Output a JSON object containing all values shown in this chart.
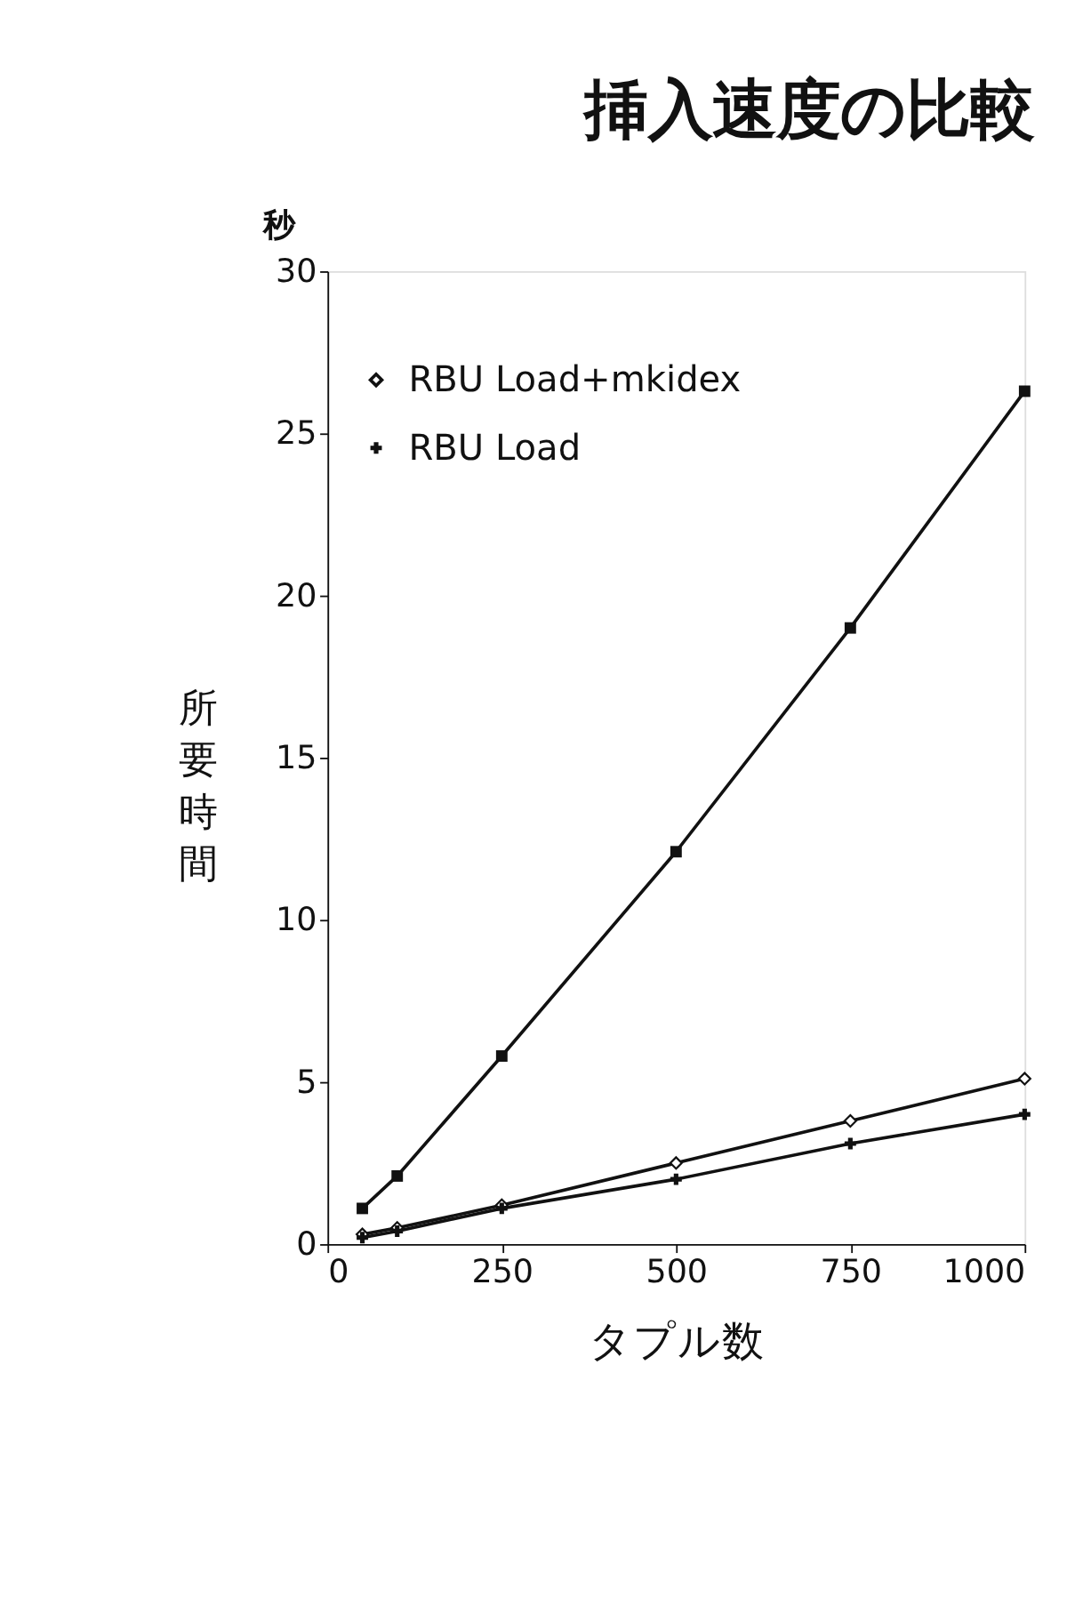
{
  "chart_data": {
    "type": "line",
    "title": "挿入速度の比較",
    "xlabel": "タプル数",
    "ylabel": "所要時間",
    "annotations": [
      "秒"
    ],
    "x": [
      50,
      100,
      250,
      500,
      750,
      1000
    ],
    "series": [
      {
        "color": "#111111",
        "marker": "square",
        "values": [
          1.1,
          2.1,
          5.8,
          12.1,
          19.0,
          26.3
        ]
      },
      {
        "name": "RBU Load+mkidex",
        "color": "#111111",
        "marker": "diamond",
        "values": [
          0.3,
          0.5,
          1.2,
          2.5,
          3.8,
          5.1
        ]
      },
      {
        "name": "RBU Load",
        "color": "#111111",
        "marker": "cross",
        "values": [
          0.2,
          0.4,
          1.1,
          2.0,
          3.1,
          4.0
        ]
      }
    ],
    "xlim": [
      0,
      1000
    ],
    "xticks": [
      0,
      250,
      500,
      750,
      1000
    ],
    "ylim": [
      0,
      30
    ],
    "yticks": [
      0,
      5,
      10,
      15,
      20,
      25,
      30
    ],
    "grid": false,
    "legend": "top left"
  }
}
